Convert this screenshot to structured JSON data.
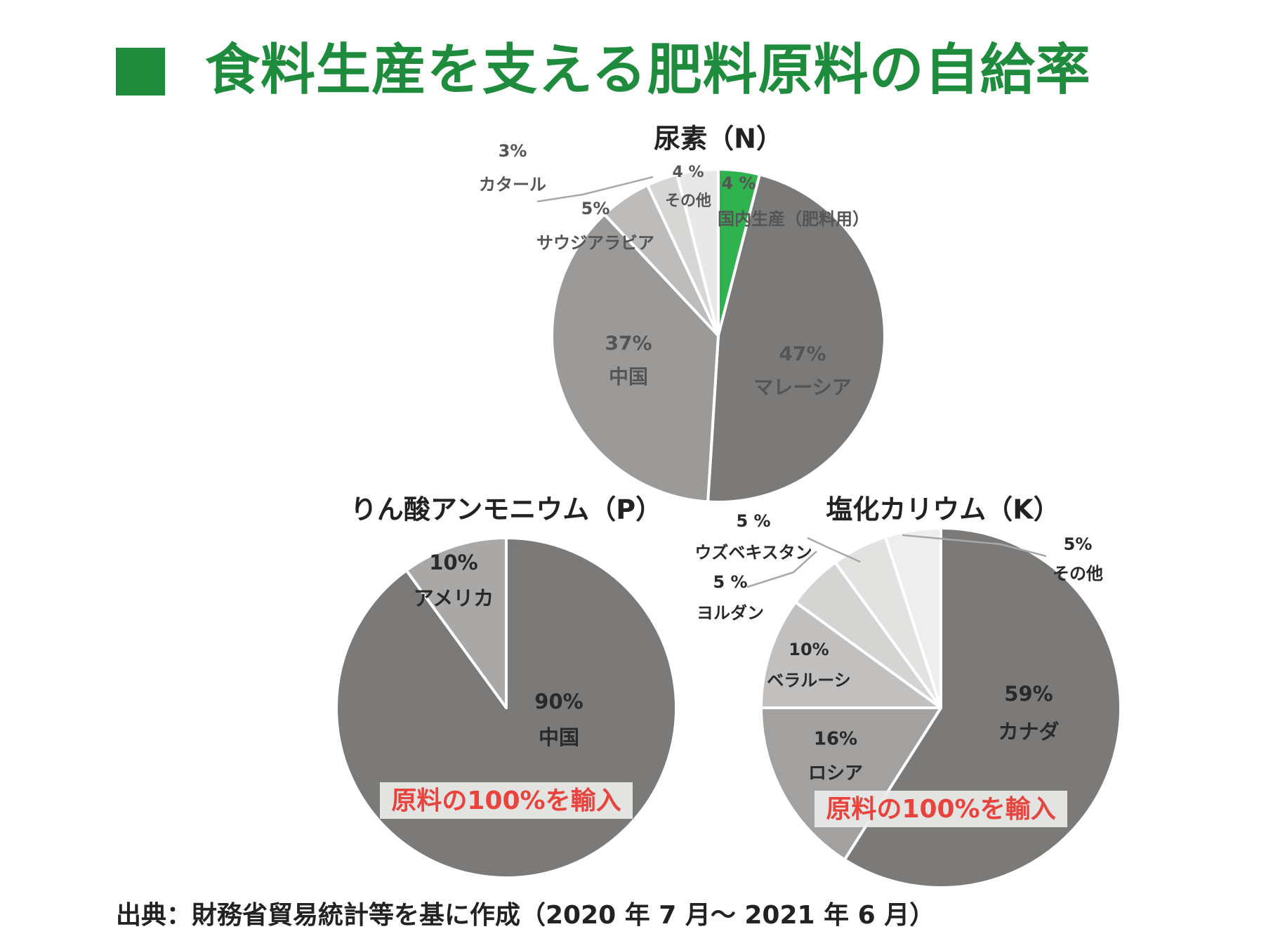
{
  "title": "食料生産を支える肥料原料の自給率",
  "source_note": "出典：財務省貿易統計等を基に作成（2020 年 7 月〜 2021 年 6 月）",
  "colors": {
    "title": "#1e8c3c",
    "accent_green": "#2fb34f",
    "import_note": "#e8433d",
    "import_note_bg": "#ebebeb"
  },
  "chart_data": [
    {
      "type": "pie",
      "title": "尿素（N）",
      "start_angle_deg": 0,
      "direction": "clockwise",
      "slices": [
        {
          "label": "国内生産（肥料用）",
          "value_label": "4 %",
          "value": 4,
          "color": "#2fb34f"
        },
        {
          "label": "マレーシア",
          "value_label": "47%",
          "value": 47,
          "color": "#7b7a79"
        },
        {
          "label": "中国",
          "value_label": "37%",
          "value": 37,
          "color": "#9b9a99"
        },
        {
          "label": "サウジアラビア",
          "value_label": "5%",
          "value": 5,
          "color": "#bdbcbb"
        },
        {
          "label": "カタール",
          "value_label": "3%",
          "value": 3,
          "color": "#d6d6d5"
        },
        {
          "label": "その他",
          "value_label": "4 %",
          "value": 4,
          "color": "#e8e8e8"
        }
      ]
    },
    {
      "type": "pie",
      "title": "りん酸アンモニウム（P）",
      "start_angle_deg": 0,
      "direction": "clockwise",
      "note": "原料の100%を輸入",
      "slices": [
        {
          "label": "中国",
          "value_label": "90%",
          "value": 90,
          "color": "#7b7a79"
        },
        {
          "label": "アメリカ",
          "value_label": "10%",
          "value": 10,
          "color": "#a9a8a7"
        }
      ]
    },
    {
      "type": "pie",
      "title": "塩化カリウム（K）",
      "start_angle_deg": 0,
      "direction": "clockwise",
      "note": "原料の100%を輸入",
      "slices": [
        {
          "label": "カナダ",
          "value_label": "59%",
          "value": 59,
          "color": "#7b7a79"
        },
        {
          "label": "ロシア",
          "value_label": "16%",
          "value": 16,
          "color": "#a2a1a0"
        },
        {
          "label": "ベラルーシ",
          "value_label": "10%",
          "value": 10,
          "color": "#c1c0bf"
        },
        {
          "label": "ヨルダン",
          "value_label": "5 %",
          "value": 5,
          "color": "#d4d4d3"
        },
        {
          "label": "ウズベキスタン",
          "value_label": "5 %",
          "value": 5,
          "color": "#e2e2e1"
        },
        {
          "label": "その他",
          "value_label": "5%",
          "value": 5,
          "color": "#eeeeee"
        }
      ]
    }
  ]
}
